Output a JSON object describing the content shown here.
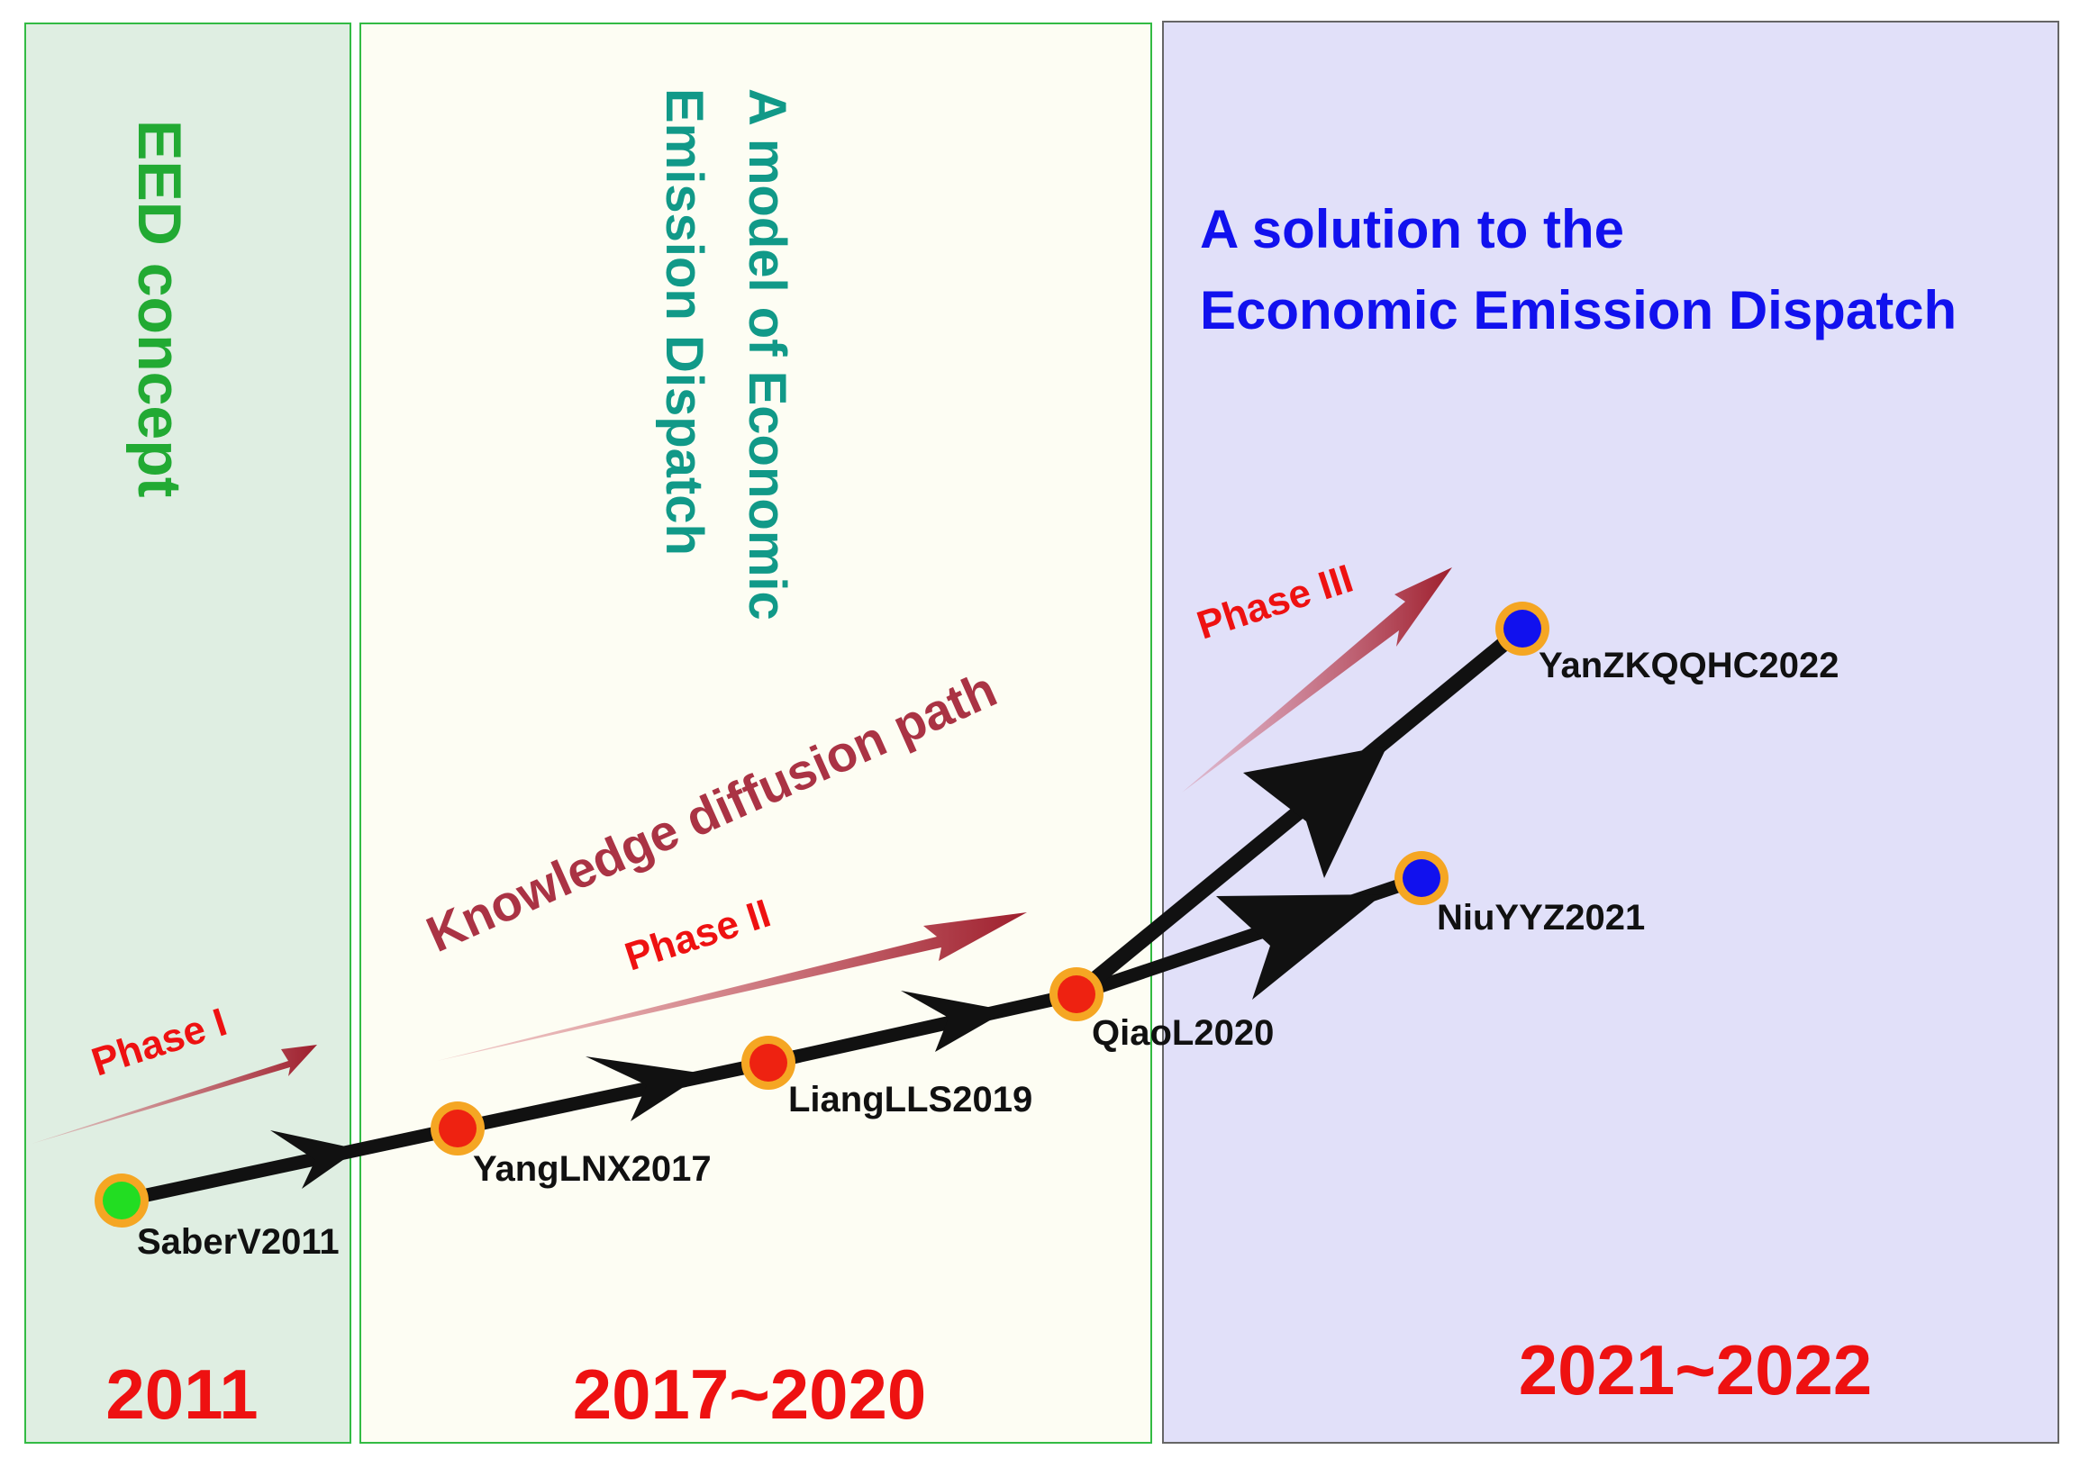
{
  "panels": [
    {
      "id": "p1",
      "years": "2011",
      "title_lines": [
        "EED concept"
      ]
    },
    {
      "id": "p2",
      "years": "2017~2020",
      "title_lines": [
        "A model of  Economic",
        "Emission Dispatch"
      ]
    },
    {
      "id": "p3",
      "years": "2021~2022",
      "title_lines": [
        "A solution to the",
        "Economic Emission Dispatch"
      ]
    }
  ],
  "phases": {
    "phase1": "Phase  I",
    "phase2": "Phase  II",
    "phase3": "Phase  III",
    "path": "Knowledge diffusion path"
  },
  "nodes": [
    {
      "id": "SaberV2011",
      "label": "SaberV2011",
      "fill": "#22dd22"
    },
    {
      "id": "YangLNX2017",
      "label": "YangLNX2017",
      "fill": "#ee2211"
    },
    {
      "id": "LiangLLS2019",
      "label": "LiangLLS2019",
      "fill": "#ee2211"
    },
    {
      "id": "QiaoL2020",
      "label": "QiaoL2020",
      "fill": "#ee2211"
    },
    {
      "id": "NiuYYZ2021",
      "label": "NiuYYZ2021",
      "fill": "#1111ee"
    },
    {
      "id": "YanZKQQHC2022",
      "label": "YanZKQQHC2022",
      "fill": "#1111ee"
    }
  ],
  "colors": {
    "panel1_fill": "#dfeee2",
    "panel2_fill": "#fdfdf3",
    "panel3_fill": "#e1e0f9",
    "panel_border_green": "#33bb44",
    "panel_border_gray": "#666666",
    "title1": "#22aa33",
    "title2": "#119988",
    "title3": "#1111ee",
    "year": "#ee1111",
    "phase": "#ee1111",
    "path_label": "#aa3344",
    "arrow_red": "#9e1f2d",
    "edge": "#111111",
    "node_ring": "#f5a623"
  }
}
